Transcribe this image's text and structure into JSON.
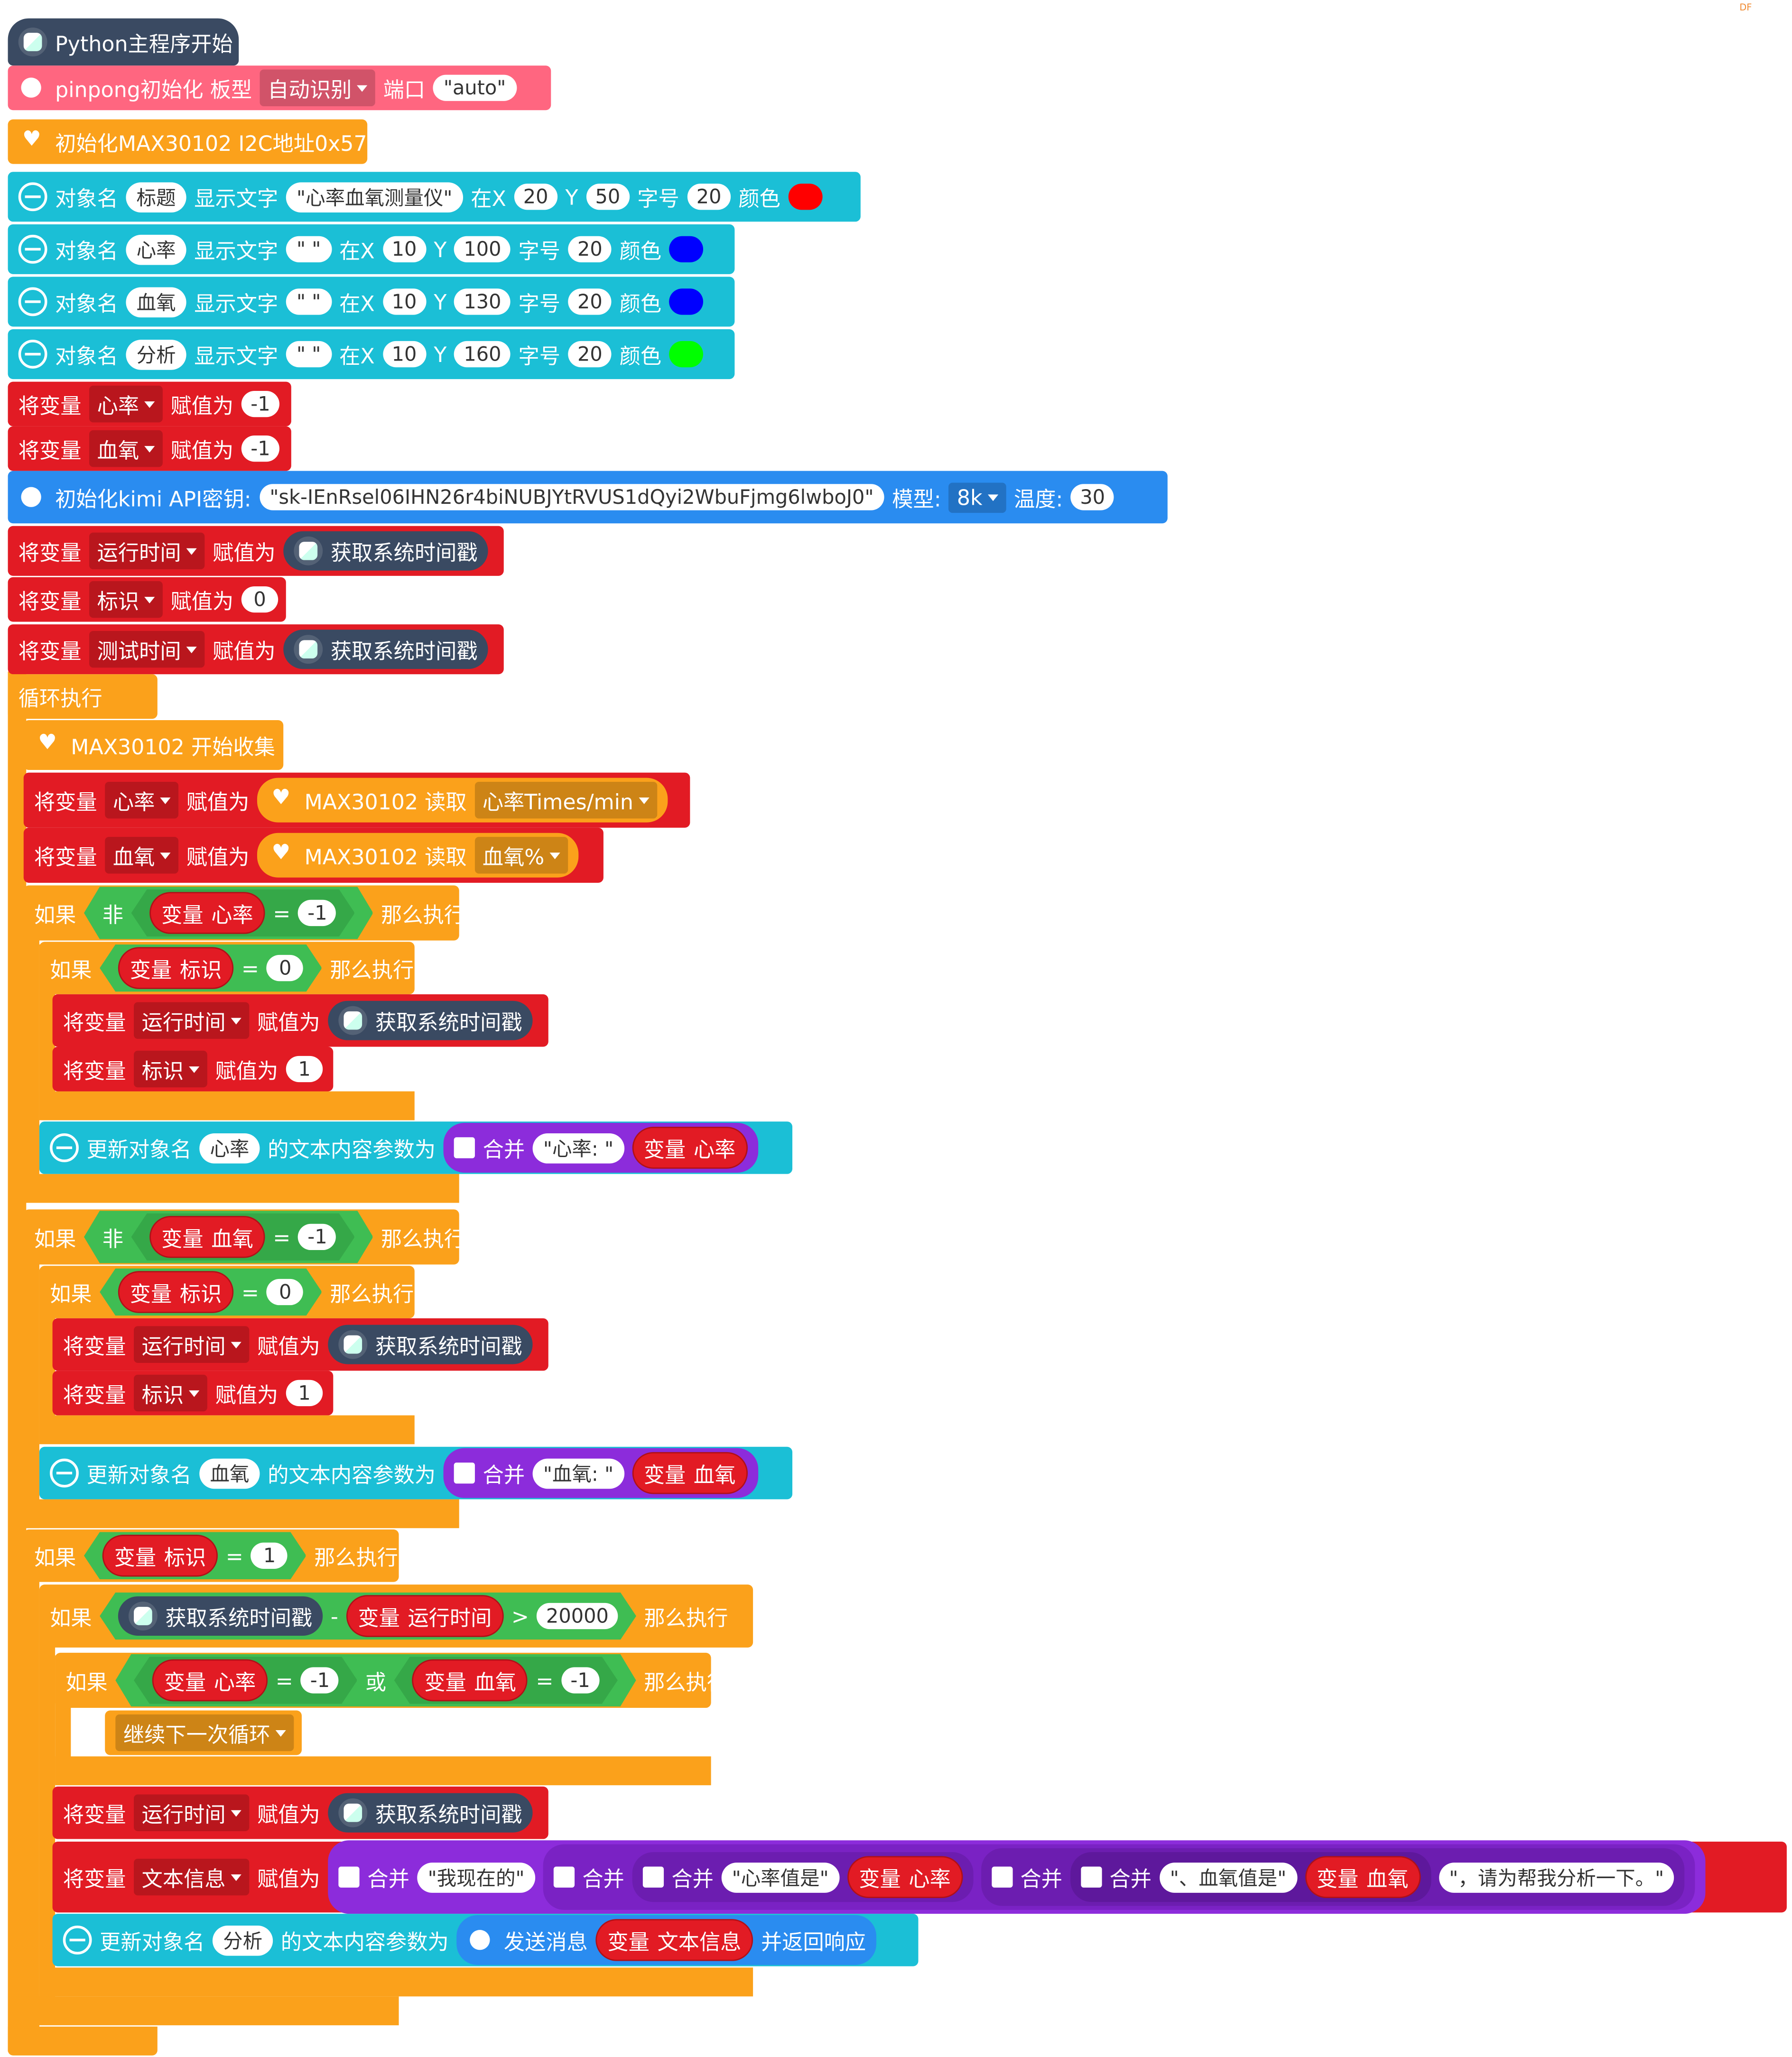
{
  "hat_label": "Python主程序开始",
  "pinpong": {
    "label": "pinpong初始化 板型",
    "board": "自动识别",
    "port_label": "端口",
    "port": "\"auto\""
  },
  "max_init": "初始化MAX30102 I2C地址0x57",
  "labels": {
    "obj": "对象名",
    "show": "显示文字",
    "atx": "在X",
    "y": "Y",
    "size": "字号",
    "color": "颜色",
    "setvar": "将变量",
    "assign": "赋值为",
    "loop": "循环执行",
    "if": "如果",
    "then": "那么执行",
    "not": "非",
    "var": "变量",
    "eq": "=",
    "or": "或",
    "gt": ">",
    "minus": "-",
    "update": "更新对象名",
    "textparam": "的文本内容参数为",
    "join": "合并",
    "timestamp": "获取系统时间戳",
    "read": "MAX30102 读取",
    "start_collect": "MAX30102 开始收集",
    "continue": "继续下一次循环",
    "send": "发送消息",
    "andresp": "并返回响应"
  },
  "displays": [
    {
      "name": "标题",
      "text": "\"心率血氧测量仪\"",
      "x": "20",
      "y": "50",
      "size": "20",
      "color": "#ff0000"
    },
    {
      "name": "心率",
      "text": "\"  \"",
      "x": "10",
      "y": "100",
      "size": "20",
      "color": "#0000ff"
    },
    {
      "name": "血氧",
      "text": "\"  \"",
      "x": "10",
      "y": "130",
      "size": "20",
      "color": "#0000ff"
    },
    {
      "name": "分析",
      "text": "\"  \"",
      "x": "10",
      "y": "160",
      "size": "20",
      "color": "#00ff00"
    }
  ],
  "vars": {
    "hr": "心率",
    "spo2": "血氧",
    "runtime": "运行时间",
    "flag": "标识",
    "testtime": "测试时间",
    "msg": "文本信息"
  },
  "values": {
    "neg1": "-1",
    "zero": "0",
    "one": "1",
    "ms": "20000"
  },
  "kimi": {
    "label": "初始化kimi API密钥:",
    "key": "\"sk-IEnRsel06IHN26r4biNUBJYtRVUS1dQyi2WbuFjmg6lwboJ0\"",
    "model_label": "模型:",
    "model": "8k",
    "temp_label": "温度:",
    "temp": "30"
  },
  "read_opts": {
    "hr": "心率Times/min",
    "spo2": "血氧%"
  },
  "strings": {
    "hr_prefix": "\"心率:   \"",
    "spo2_prefix": "\"血氧:   \"",
    "now": "\"我现在的\"",
    "hr_is": "\"心率值是\"",
    "spo2_is": "\"、血氧值是\"",
    "ask": "\"，请为帮我分析一下。\""
  },
  "corner_mark": "DF"
}
